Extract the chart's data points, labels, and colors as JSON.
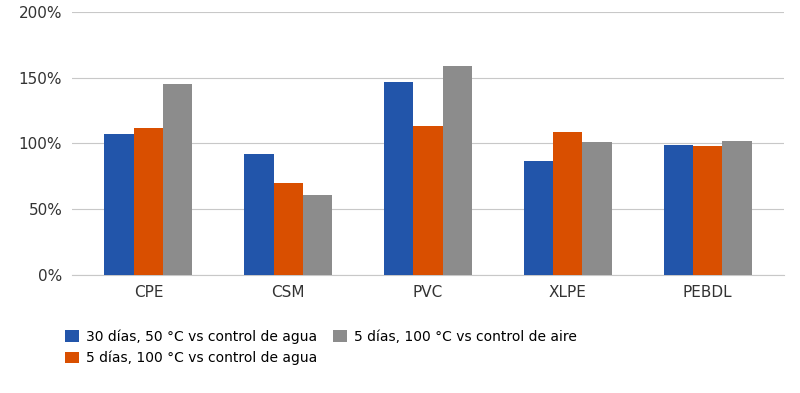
{
  "categories": [
    "CPE",
    "CSM",
    "PVC",
    "XLPE",
    "PEBDL"
  ],
  "series": [
    {
      "label": "30 días, 50 °C vs control de agua",
      "color": "#2255AA",
      "values": [
        1.07,
        0.92,
        1.47,
        0.87,
        0.99
      ]
    },
    {
      "label": "5 días, 100 °C vs control de agua",
      "color": "#D94F00",
      "values": [
        1.12,
        0.7,
        1.13,
        1.09,
        0.98
      ]
    },
    {
      "label": "5 días, 100 °C vs control de aire",
      "color": "#8C8C8C",
      "values": [
        1.45,
        0.61,
        1.59,
        1.01,
        1.02
      ]
    }
  ],
  "ylim": [
    0,
    2.0
  ],
  "yticks": [
    0.0,
    0.5,
    1.0,
    1.5,
    2.0
  ],
  "ytick_labels": [
    "0%",
    "50%",
    "100%",
    "150%",
    "200%"
  ],
  "background_color": "#FFFFFF",
  "grid_color": "#C8C8C8",
  "bar_width": 0.21,
  "figsize": [
    8.0,
    3.93
  ],
  "dpi": 100
}
